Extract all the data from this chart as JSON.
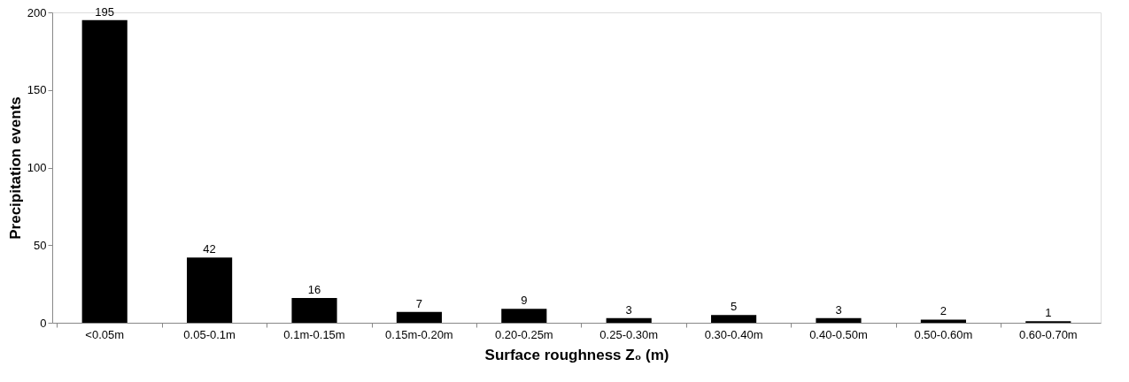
{
  "chart_data": {
    "type": "bar",
    "xlabel": "Surface roughness Z₀ (m)",
    "ylabel": "Precipitation events",
    "categories": [
      "<0.05m",
      "0.05-0.1m",
      "0.1m-0.15m",
      "0.15m-0.20m",
      "0.20-0.25m",
      "0.25-0.30m",
      "0.30-0.40m",
      "0.40-0.50m",
      "0.50-0.60m",
      "0.60-0.70m"
    ],
    "values": [
      195,
      42,
      16,
      7,
      9,
      3,
      5,
      3,
      2,
      1
    ],
    "color": "#000000",
    "ylim": [
      0,
      200
    ],
    "yticks": [
      0,
      50,
      100,
      150,
      200
    ],
    "grid": false,
    "data_labels": true
  }
}
